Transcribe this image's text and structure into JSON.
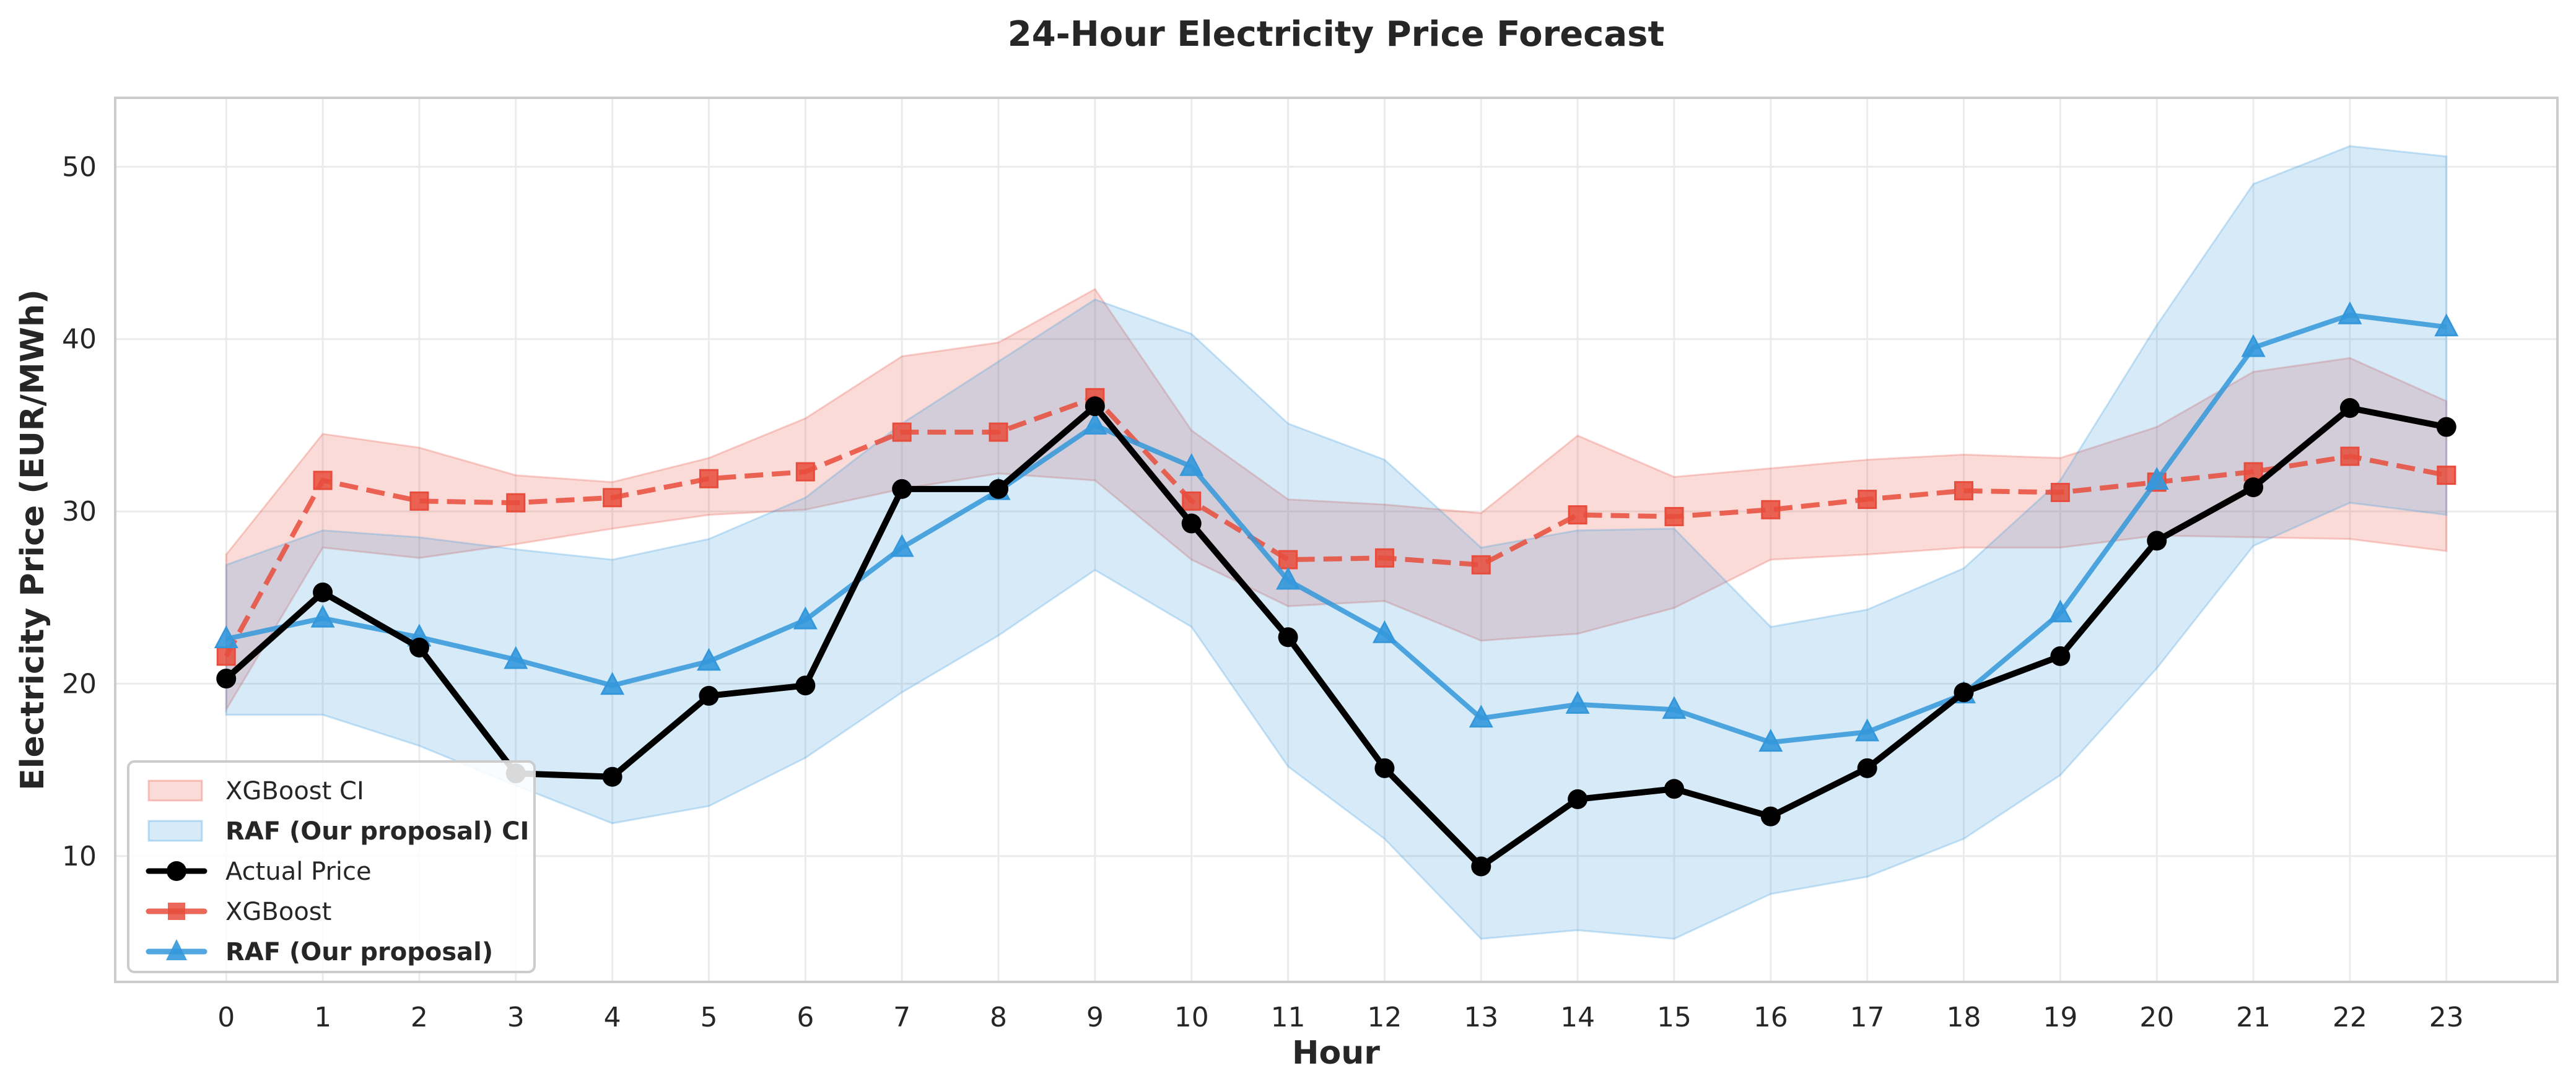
{
  "chart_data": {
    "type": "line",
    "title": "24-Hour Electricity Price Forecast",
    "xlabel": "Hour",
    "ylabel": "Electricity Price (EUR/MWh)",
    "x": [
      0,
      1,
      2,
      3,
      4,
      5,
      6,
      7,
      8,
      9,
      10,
      11,
      12,
      13,
      14,
      15,
      16,
      17,
      18,
      19,
      20,
      21,
      22,
      23
    ],
    "xticks": [
      "0",
      "1",
      "2",
      "3",
      "4",
      "5",
      "6",
      "7",
      "8",
      "9",
      "10",
      "11",
      "12",
      "13",
      "14",
      "15",
      "16",
      "17",
      "18",
      "19",
      "20",
      "21",
      "22",
      "23"
    ],
    "yticks": [
      10,
      20,
      30,
      40,
      50
    ],
    "xlim": [
      -1.15,
      24.15
    ],
    "ylim": [
      2.7,
      54.0
    ],
    "grid": true,
    "legend_position": "lower-left",
    "bands": [
      {
        "name": "XGBoost CI",
        "bold": false,
        "color": "#e74c3c",
        "opacity": 0.2,
        "lower": [
          18.5,
          27.9,
          27.3,
          28.1,
          29.0,
          29.8,
          30.1,
          31.3,
          32.2,
          31.8,
          27.2,
          24.5,
          24.8,
          22.5,
          22.9,
          24.4,
          27.2,
          27.5,
          27.9,
          27.9,
          28.6,
          28.5,
          28.4,
          27.7
        ],
        "upper": [
          27.5,
          34.5,
          33.7,
          32.1,
          31.7,
          33.1,
          35.4,
          39.0,
          39.8,
          42.9,
          34.7,
          30.7,
          30.4,
          29.9,
          34.4,
          32.0,
          32.5,
          33.0,
          33.3,
          33.1,
          34.9,
          38.1,
          38.9,
          36.4
        ]
      },
      {
        "name": "RAF (Our proposal) CI",
        "bold": true,
        "color": "#3498db",
        "opacity": 0.2,
        "lower": [
          18.2,
          18.2,
          16.4,
          14.1,
          11.9,
          12.9,
          15.7,
          19.5,
          22.8,
          26.6,
          23.3,
          15.2,
          11.0,
          5.2,
          5.7,
          5.2,
          7.8,
          8.8,
          11.0,
          14.7,
          20.9,
          28.0,
          30.5,
          29.8
        ],
        "upper": [
          26.9,
          28.9,
          28.5,
          27.8,
          27.2,
          28.4,
          30.8,
          35.1,
          38.7,
          42.3,
          40.3,
          35.1,
          33.0,
          27.9,
          28.9,
          29.0,
          23.3,
          24.3,
          26.7,
          31.8,
          40.8,
          49.0,
          51.2,
          50.6
        ]
      }
    ],
    "series": [
      {
        "name": "Actual Price",
        "bold": false,
        "color": "#000000",
        "marker": "circle",
        "linestyle": "solid",
        "values": [
          20.3,
          25.3,
          22.1,
          14.8,
          14.6,
          19.3,
          19.9,
          31.3,
          31.3,
          36.1,
          29.3,
          22.7,
          15.1,
          9.4,
          13.3,
          13.9,
          12.3,
          15.1,
          19.5,
          21.6,
          28.3,
          31.4,
          36.0,
          34.9
        ]
      },
      {
        "name": "XGBoost",
        "bold": false,
        "color": "#e74c3c",
        "marker": "square",
        "linestyle": "dashed",
        "values": [
          21.6,
          31.8,
          30.6,
          30.5,
          30.8,
          31.9,
          32.3,
          34.6,
          34.6,
          36.6,
          30.6,
          27.2,
          27.3,
          26.9,
          29.8,
          29.7,
          30.1,
          30.7,
          31.2,
          31.1,
          31.7,
          32.3,
          33.2,
          32.1
        ]
      },
      {
        "name": "RAF (Our proposal)",
        "bold": true,
        "color": "#3498db",
        "marker": "triangle",
        "linestyle": "solid",
        "values": [
          22.6,
          23.8,
          22.7,
          21.4,
          19.9,
          21.3,
          23.7,
          27.9,
          31.2,
          35.0,
          32.6,
          26.0,
          22.9,
          18.0,
          18.8,
          18.5,
          16.6,
          17.2,
          19.4,
          24.1,
          31.8,
          39.5,
          41.4,
          40.7
        ]
      }
    ]
  }
}
